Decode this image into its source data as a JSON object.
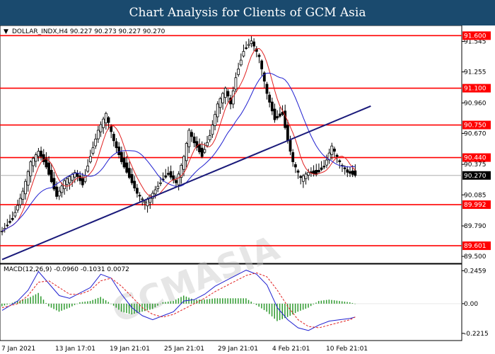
{
  "banner": {
    "title": "Chart Analysis for Clients of GCM Asia"
  },
  "symbol_header": "DOLLAR_INDX,H4  90.227 90.273 90.227 90.270",
  "watermark": "GCMASIA",
  "chart_data": [
    {
      "type": "candlestick",
      "title": "DOLLAR_INDX,H4  90.227 90.273 90.227 90.270",
      "y_axis_ticks": [
        91.545,
        91.255,
        90.96,
        90.67,
        90.375,
        90.085,
        89.79,
        89.5
      ],
      "ylim": [
        89.44,
        91.69
      ],
      "x_tick_labels": [
        "7 Jan 2021",
        "13 Jan 17:01",
        "19 Jan 21:01",
        "25 Jan 21:01",
        "29 Jan 21:01",
        "4 Feb 21:01",
        "10 Feb 21:01"
      ],
      "horizontal_levels": [
        {
          "value": 91.6,
          "label": "91.600"
        },
        {
          "value": 91.1,
          "label": "91.100"
        },
        {
          "value": 90.75,
          "label": "90.750"
        },
        {
          "value": 90.44,
          "label": "90.440"
        },
        {
          "value": 89.992,
          "label": "89.992"
        },
        {
          "value": 89.601,
          "label": "89.601"
        }
      ],
      "current_price": {
        "value": 90.27,
        "label": "90.270"
      },
      "trendline": {
        "from": {
          "bar": 0,
          "value": 89.47
        },
        "to": {
          "bar": 142,
          "value": 90.93
        }
      },
      "close_path": [
        [
          0,
          89.74
        ],
        [
          4,
          89.85
        ],
        [
          8,
          90.12
        ],
        [
          11,
          90.4
        ],
        [
          14,
          90.5
        ],
        [
          17,
          90.35
        ],
        [
          21,
          90.07
        ],
        [
          24,
          90.22
        ],
        [
          28,
          90.3
        ],
        [
          31,
          90.18
        ],
        [
          34,
          90.45
        ],
        [
          37,
          90.7
        ],
        [
          40,
          90.86
        ],
        [
          43,
          90.6
        ],
        [
          46,
          90.4
        ],
        [
          49,
          90.25
        ],
        [
          52,
          90.1
        ],
        [
          55,
          90.02
        ],
        [
          58,
          90.1
        ],
        [
          61,
          90.2
        ],
        [
          64,
          90.28
        ],
        [
          67,
          90.2
        ],
        [
          70,
          90.45
        ],
        [
          72,
          90.7
        ],
        [
          74,
          90.58
        ],
        [
          77,
          90.45
        ],
        [
          80,
          90.65
        ],
        [
          83,
          90.95
        ],
        [
          86,
          91.1
        ],
        [
          88,
          90.95
        ],
        [
          90,
          91.2
        ],
        [
          93,
          91.45
        ],
        [
          96,
          91.55
        ],
        [
          99,
          91.4
        ],
        [
          102,
          91.05
        ],
        [
          105,
          90.8
        ],
        [
          108,
          90.85
        ],
        [
          110,
          90.6
        ],
        [
          112,
          90.4
        ],
        [
          115,
          90.25
        ],
        [
          118,
          90.3
        ],
        [
          121,
          90.28
        ],
        [
          124,
          90.35
        ],
        [
          127,
          90.55
        ],
        [
          130,
          90.4
        ],
        [
          133,
          90.3
        ],
        [
          136,
          90.27
        ]
      ],
      "series": [
        {
          "name": "",
          "color": "#e02020",
          "kind": "ma-fast"
        },
        {
          "name": "",
          "color": "#2020d0",
          "kind": "ma-slow"
        }
      ]
    },
    {
      "type": "macd",
      "title": "MACD(12,26,9) -0.0960 -0.1031 0.0072",
      "y_axis_ticks": [
        0.2459,
        0.0,
        -0.2215
      ],
      "ylim": [
        -0.27,
        0.29
      ],
      "macd_path": [
        [
          0,
          -0.05
        ],
        [
          6,
          0.02
        ],
        [
          10,
          0.1
        ],
        [
          14,
          0.24
        ],
        [
          18,
          0.15
        ],
        [
          22,
          0.06
        ],
        [
          26,
          0.04
        ],
        [
          30,
          0.08
        ],
        [
          34,
          0.12
        ],
        [
          38,
          0.22
        ],
        [
          42,
          0.19
        ],
        [
          46,
          0.07
        ],
        [
          50,
          -0.03
        ],
        [
          54,
          -0.09
        ],
        [
          58,
          -0.12
        ],
        [
          62,
          -0.09
        ],
        [
          66,
          -0.06
        ],
        [
          70,
          0.02
        ],
        [
          74,
          0.03
        ],
        [
          78,
          0.07
        ],
        [
          82,
          0.13
        ],
        [
          86,
          0.17
        ],
        [
          90,
          0.21
        ],
        [
          94,
          0.25
        ],
        [
          98,
          0.22
        ],
        [
          102,
          0.14
        ],
        [
          106,
          -0.03
        ],
        [
          110,
          -0.12
        ],
        [
          114,
          -0.18
        ],
        [
          118,
          -0.2
        ],
        [
          122,
          -0.16
        ],
        [
          126,
          -0.13
        ],
        [
          130,
          -0.12
        ],
        [
          134,
          -0.11
        ],
        [
          136,
          -0.1
        ]
      ],
      "signal_path": [
        [
          0,
          -0.03
        ],
        [
          6,
          0.0
        ],
        [
          10,
          0.06
        ],
        [
          14,
          0.16
        ],
        [
          18,
          0.17
        ],
        [
          22,
          0.12
        ],
        [
          26,
          0.07
        ],
        [
          30,
          0.07
        ],
        [
          34,
          0.1
        ],
        [
          38,
          0.17
        ],
        [
          42,
          0.19
        ],
        [
          46,
          0.13
        ],
        [
          50,
          0.05
        ],
        [
          54,
          -0.03
        ],
        [
          58,
          -0.08
        ],
        [
          62,
          -0.1
        ],
        [
          66,
          -0.08
        ],
        [
          70,
          -0.04
        ],
        [
          74,
          0.0
        ],
        [
          78,
          0.04
        ],
        [
          82,
          0.09
        ],
        [
          86,
          0.13
        ],
        [
          90,
          0.17
        ],
        [
          94,
          0.21
        ],
        [
          98,
          0.23
        ],
        [
          102,
          0.2
        ],
        [
          106,
          0.1
        ],
        [
          110,
          -0.02
        ],
        [
          114,
          -0.12
        ],
        [
          118,
          -0.17
        ],
        [
          122,
          -0.18
        ],
        [
          126,
          -0.16
        ],
        [
          130,
          -0.14
        ],
        [
          134,
          -0.12
        ],
        [
          136,
          -0.1
        ]
      ],
      "colors": {
        "macd": "#2020d0",
        "signal": "#e02020",
        "histogram": "#2e9a2e"
      }
    }
  ]
}
